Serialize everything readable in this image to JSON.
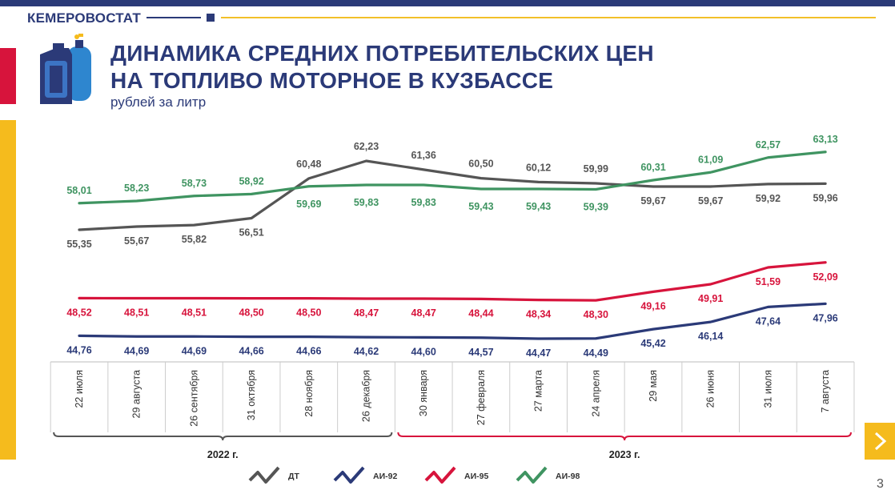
{
  "header": {
    "brand": "КЕМЕРОВОСТАТ",
    "title_line1": "ДИНАМИКА СРЕДНИХ ПОТРЕБИТЕЛЬСКИХ ЦЕН",
    "title_line2": "НА ТОПЛИВО МОТОРНОЕ В КУЗБАССЕ",
    "subtitle": "рублей за литр"
  },
  "page_number": "3",
  "colors": {
    "navy": "#2b3a78",
    "red": "#d7143c",
    "yellow": "#f5bb1d",
    "gray": "#555555",
    "green": "#3f9461"
  },
  "icons": [
    "fuel-canister-and-gas-cylinder-icon",
    "chevron-right-icon"
  ],
  "chart_data": {
    "type": "line",
    "categories": [
      "22 июля",
      "29 августа",
      "26 сентября",
      "31 октября",
      "28 ноября",
      "26 декабря",
      "30 января",
      "27 февраля",
      "27 марта",
      "24 апреля",
      "29 мая",
      "26 июня",
      "31 июля",
      "7 августа"
    ],
    "year_groups": [
      {
        "label": "2022 г.",
        "from": 0,
        "to": 5,
        "color": "#555555"
      },
      {
        "label": "2023 г.",
        "from": 6,
        "to": 13,
        "color": "#d7143c"
      }
    ],
    "series": [
      {
        "name": "ДТ",
        "color": "#555555",
        "values": [
          55.35,
          55.67,
          55.82,
          56.51,
          60.48,
          62.23,
          61.36,
          60.5,
          60.12,
          59.99,
          59.67,
          59.67,
          59.92,
          59.96
        ],
        "labels": [
          "55,35",
          "55,67",
          "55,82",
          "56,51",
          "60,48",
          "62,23",
          "61,36",
          "60,50",
          "60,12",
          "59,99",
          "59,67",
          "59,67",
          "59,92",
          "59,96"
        ]
      },
      {
        "name": "АИ-92",
        "color": "#2b3a78",
        "values": [
          44.76,
          44.69,
          44.69,
          44.66,
          44.66,
          44.62,
          44.6,
          44.57,
          44.47,
          44.49,
          45.42,
          46.14,
          47.64,
          47.96
        ],
        "labels": [
          "44,76",
          "44,69",
          "44,69",
          "44,66",
          "44,66",
          "44,62",
          "44,60",
          "44,57",
          "44,47",
          "44,49",
          "45,42",
          "46,14",
          "47,64",
          "47,96"
        ]
      },
      {
        "name": "АИ-95",
        "color": "#d7143c",
        "values": [
          48.52,
          48.51,
          48.51,
          48.5,
          48.5,
          48.47,
          48.47,
          48.44,
          48.34,
          48.3,
          49.16,
          49.91,
          51.59,
          52.09
        ],
        "labels": [
          "48,52",
          "48,51",
          "48,51",
          "48,50",
          "48,50",
          "48,47",
          "48,47",
          "48,44",
          "48,34",
          "48,30",
          "49,16",
          "49,91",
          "51,59",
          "52,09"
        ]
      },
      {
        "name": "АИ-98",
        "color": "#3f9461",
        "values": [
          58.01,
          58.23,
          58.73,
          58.92,
          59.69,
          59.83,
          59.83,
          59.43,
          59.43,
          59.39,
          60.31,
          61.09,
          62.57,
          63.13
        ],
        "labels": [
          "58,01",
          "58,23",
          "58,73",
          "58,92",
          "59,69",
          "59,83",
          "59,83",
          "59,43",
          "59,43",
          "59,39",
          "60,31",
          "61,09",
          "62,57",
          "63,13"
        ]
      }
    ],
    "ylim": [
      43,
      64
    ],
    "grid": false,
    "legend_position": "bottom"
  }
}
